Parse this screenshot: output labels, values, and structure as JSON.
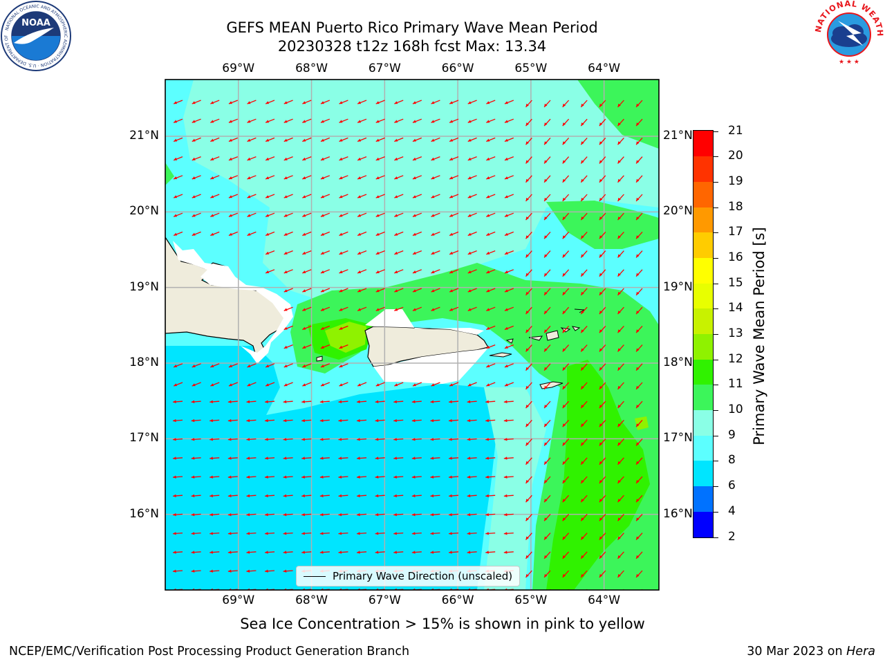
{
  "header": {
    "title_line1": "GEFS MEAN Puerto Rico Primary Wave Mean Period",
    "title_line2": "20230328 t12z 168h fcst   Max: 13.34"
  },
  "logos": {
    "left": {
      "name": "noaa-logo",
      "text": "NOAA",
      "ring_text": "NATIONAL OCEANIC AND ATMOSPHERIC ADMINISTRATION · U.S. DEPARTMENT OF COMMERCE"
    },
    "right": {
      "name": "nws-logo",
      "ring_text": "NATIONAL WEATHER SERVICE"
    }
  },
  "map": {
    "lon_range": [
      -70,
      -63.25
    ],
    "lat_range": [
      15,
      21.75
    ],
    "lon_ticks": [
      {
        "value": -69,
        "label": "69°W"
      },
      {
        "value": -68,
        "label": "68°W"
      },
      {
        "value": -67,
        "label": "67°W"
      },
      {
        "value": -66,
        "label": "66°W"
      },
      {
        "value": -65,
        "label": "65°W"
      },
      {
        "value": -64,
        "label": "64°W"
      }
    ],
    "lat_ticks": [
      {
        "value": 21,
        "label": "21°N"
      },
      {
        "value": 20,
        "label": "20°N"
      },
      {
        "value": 19,
        "label": "19°N"
      },
      {
        "value": 18,
        "label": "18°N"
      },
      {
        "value": 17,
        "label": "17°N"
      },
      {
        "value": 16,
        "label": "16°N"
      }
    ],
    "grid": true,
    "land_color": "#efecdc",
    "vector_color": "#ff0000",
    "legend_label": "Primary Wave Direction (unscaled)",
    "footnote": "Sea Ice Concentration > 15% is shown in pink to yellow"
  },
  "colorbar": {
    "label": "Primary Wave Mean Period [s]",
    "levels": [
      2,
      4,
      6,
      8,
      9,
      10,
      11,
      12,
      13,
      14,
      15,
      16,
      17,
      18,
      19,
      20,
      21
    ],
    "labels": [
      "2",
      "4",
      "6",
      "8",
      "9",
      "10",
      "11",
      "12",
      "13",
      "14",
      "15",
      "16",
      "17",
      "18",
      "19",
      "20",
      "21"
    ],
    "colors": [
      "#0000ff",
      "#0072ff",
      "#00e5ff",
      "#5cffff",
      "#8affe6",
      "#3cf55a",
      "#30f200",
      "#8ff200",
      "#c8f200",
      "#e8ff00",
      "#ffff00",
      "#ffcc00",
      "#ff9900",
      "#ff6600",
      "#ff3300",
      "#ff0000"
    ]
  },
  "footer": {
    "left": "NCEP/EMC/Verification Post Processing Product Generation Branch",
    "right_date": "30 Mar 2023 on",
    "right_machine": "Hera"
  }
}
